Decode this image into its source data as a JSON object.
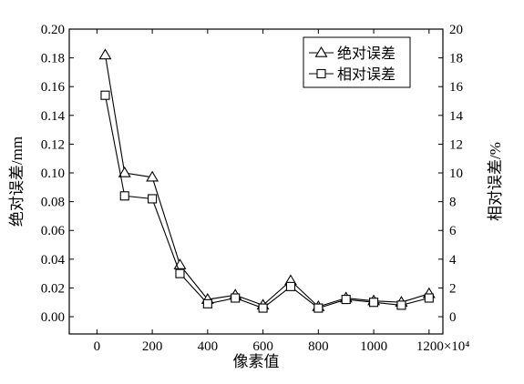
{
  "chart_data": {
    "type": "line",
    "title": "",
    "xlabel": "像素值",
    "xlim": [
      -100,
      1250
    ],
    "x_ticks": [
      0,
      200,
      400,
      600,
      800,
      1000,
      1200
    ],
    "x_tick_labels": [
      "0",
      "200",
      "400",
      "600",
      "800",
      "1000",
      "1200×10⁴"
    ],
    "left_axis": {
      "label": "绝对误差/mm",
      "ylim": [
        -0.012,
        0.2
      ],
      "ticks": [
        0.0,
        0.02,
        0.04,
        0.06,
        0.08,
        0.1,
        0.12,
        0.14,
        0.16,
        0.18,
        0.2
      ],
      "tick_labels": [
        "0.00",
        "0.02",
        "0.04",
        "0.06",
        "0.08",
        "0.10",
        "0.12",
        "0.14",
        "0.16",
        "0.18",
        "0.20"
      ]
    },
    "right_axis": {
      "label": "相对误差/%",
      "ylim": [
        -1.2,
        20
      ],
      "ticks": [
        0,
        2,
        4,
        6,
        8,
        10,
        12,
        14,
        16,
        18,
        20
      ],
      "tick_labels": [
        "0",
        "2",
        "4",
        "6",
        "8",
        "10",
        "12",
        "14",
        "16",
        "18",
        "20"
      ]
    },
    "series": [
      {
        "name": "绝对误差",
        "axis": "left",
        "marker": "triangle",
        "x": [
          30,
          100,
          200,
          300,
          400,
          500,
          600,
          700,
          800,
          900,
          1000,
          1100,
          1200
        ],
        "y": [
          0.182,
          0.1,
          0.097,
          0.036,
          0.012,
          0.015,
          0.008,
          0.025,
          0.007,
          0.013,
          0.011,
          0.01,
          0.016
        ]
      },
      {
        "name": "相对误差",
        "axis": "right",
        "marker": "square",
        "x": [
          30,
          100,
          200,
          300,
          400,
          500,
          600,
          700,
          800,
          900,
          1000,
          1100,
          1200
        ],
        "y": [
          15.4,
          8.4,
          8.2,
          3.0,
          0.9,
          1.3,
          0.6,
          2.1,
          0.6,
          1.2,
          1.0,
          0.8,
          1.3
        ]
      }
    ],
    "legend_position": "top-right",
    "grid": false,
    "colors": {
      "line": "#000000",
      "background": "#ffffff"
    }
  }
}
